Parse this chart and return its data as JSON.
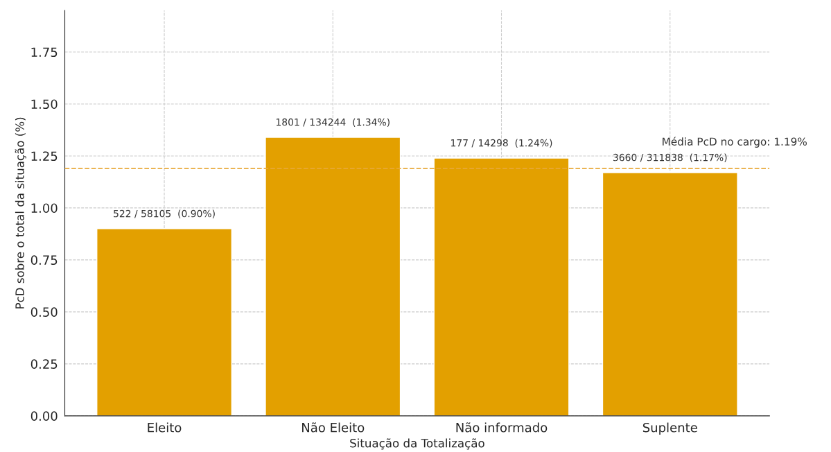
{
  "chart_data": {
    "type": "bar",
    "xlabel": "Situação da Totalização",
    "ylabel": "PcD sobre o total da situação (%)",
    "categories": [
      "Eleito",
      "Não Eleito",
      "Não informado",
      "Suplente"
    ],
    "values": [
      0.9,
      1.34,
      1.24,
      1.17
    ],
    "value_labels": [
      "522 / 58105  (0.90%)",
      "1801 / 134244  (1.34%)",
      "177 / 14298  (1.24%)",
      "3660 / 311838  (1.17%)"
    ],
    "color": "#e3a000",
    "ylim": [
      0,
      1.95
    ],
    "yticks": [
      {
        "value": 0,
        "label": "0.00"
      },
      {
        "value": 0.25,
        "label": "0.25"
      },
      {
        "value": 0.5,
        "label": "0.50"
      },
      {
        "value": 0.75,
        "label": "0.75"
      },
      {
        "value": 1,
        "label": "1.00"
      },
      {
        "value": 1.25,
        "label": "1.25"
      },
      {
        "value": 1.5,
        "label": "1.50"
      },
      {
        "value": 1.75,
        "label": "1.75"
      }
    ],
    "ref_lines": [
      {
        "axis": "y",
        "value": 1.19,
        "label": "Média PcD no cargo: 1.19%",
        "color": "#e8a838",
        "line_style": "dashed"
      }
    ],
    "grid": true
  }
}
